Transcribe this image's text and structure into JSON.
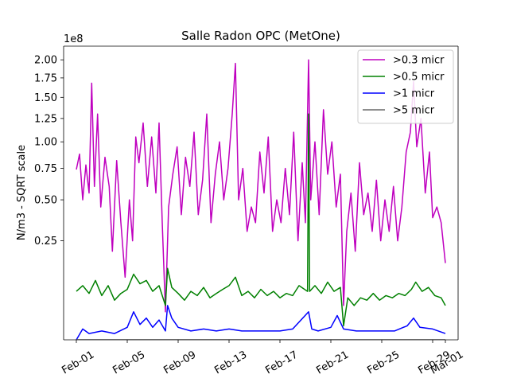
{
  "chart_data": {
    "type": "line",
    "title": "Salle Radon OPC (MetOne)",
    "ylabel": "N/m3 - SQRT scale",
    "xlabel": "",
    "y_scale": "sqrt",
    "y_offset_label": "1e8",
    "ylim": [
      0,
      2.2
    ],
    "xlim": [
      "2024-01-31",
      "2024-03-02"
    ],
    "grid": false,
    "legend_position": "top-right",
    "x_ticks": [
      {
        "date": "2024-02-01",
        "label": "Feb-01"
      },
      {
        "date": "2024-02-05",
        "label": "Feb-05"
      },
      {
        "date": "2024-02-09",
        "label": "Feb-09"
      },
      {
        "date": "2024-02-13",
        "label": "Feb-13"
      },
      {
        "date": "2024-02-17",
        "label": "Feb-17"
      },
      {
        "date": "2024-02-21",
        "label": "Feb-21"
      },
      {
        "date": "2024-02-25",
        "label": "Feb-25"
      },
      {
        "date": "2024-02-29",
        "label": "Feb-29"
      },
      {
        "date": "2024-03-01",
        "label": "Mar-01"
      }
    ],
    "y_ticks": [
      {
        "value": 0.25,
        "label": "0.25"
      },
      {
        "value": 0.5,
        "label": "0.50"
      },
      {
        "value": 0.75,
        "label": "0.75"
      },
      {
        "value": 1.0,
        "label": "1.00"
      },
      {
        "value": 1.25,
        "label": "1.25"
      },
      {
        "value": 1.5,
        "label": "1.50"
      },
      {
        "value": 1.75,
        "label": "1.75"
      },
      {
        "value": 2.0,
        "label": "2.00"
      }
    ],
    "series": [
      {
        "name": ">0.3 micr",
        "color": "#bf00bf",
        "points": [
          [
            "2024-02-01T00:00",
            0.74
          ],
          [
            "2024-02-01T06:00",
            0.88
          ],
          [
            "2024-02-01T12:00",
            0.5
          ],
          [
            "2024-02-01T18:00",
            0.78
          ],
          [
            "2024-02-02T00:00",
            0.55
          ],
          [
            "2024-02-02T05:00",
            1.68
          ],
          [
            "2024-02-02T10:00",
            0.6
          ],
          [
            "2024-02-02T16:00",
            1.3
          ],
          [
            "2024-02-02T22:00",
            0.45
          ],
          [
            "2024-02-03T06:00",
            0.85
          ],
          [
            "2024-02-03T14:00",
            0.6
          ],
          [
            "2024-02-03T20:00",
            0.2
          ],
          [
            "2024-02-04T04:00",
            0.82
          ],
          [
            "2024-02-04T12:00",
            0.35
          ],
          [
            "2024-02-04T20:00",
            0.1
          ],
          [
            "2024-02-05T04:00",
            0.5
          ],
          [
            "2024-02-05T10:00",
            0.25
          ],
          [
            "2024-02-05T16:00",
            1.05
          ],
          [
            "2024-02-05T22:00",
            0.8
          ],
          [
            "2024-02-06T06:00",
            1.2
          ],
          [
            "2024-02-06T14:00",
            0.6
          ],
          [
            "2024-02-06T22:00",
            1.05
          ],
          [
            "2024-02-07T06:00",
            0.55
          ],
          [
            "2024-02-07T12:00",
            1.2
          ],
          [
            "2024-02-07T18:00",
            0.35
          ],
          [
            "2024-02-08T00:00",
            0.02
          ],
          [
            "2024-02-08T06:00",
            0.45
          ],
          [
            "2024-02-08T14:00",
            0.7
          ],
          [
            "2024-02-08T22:00",
            0.95
          ],
          [
            "2024-02-09T06:00",
            0.4
          ],
          [
            "2024-02-09T14:00",
            0.85
          ],
          [
            "2024-02-09T22:00",
            0.6
          ],
          [
            "2024-02-10T06:00",
            1.1
          ],
          [
            "2024-02-10T14:00",
            0.4
          ],
          [
            "2024-02-10T22:00",
            0.65
          ],
          [
            "2024-02-11T06:00",
            1.3
          ],
          [
            "2024-02-11T14:00",
            0.35
          ],
          [
            "2024-02-11T22:00",
            0.7
          ],
          [
            "2024-02-12T06:00",
            1.0
          ],
          [
            "2024-02-12T14:00",
            0.5
          ],
          [
            "2024-02-12T22:00",
            0.75
          ],
          [
            "2024-02-13T06:00",
            1.3
          ],
          [
            "2024-02-13T12:00",
            1.95
          ],
          [
            "2024-02-13T18:00",
            0.5
          ],
          [
            "2024-02-14T02:00",
            0.75
          ],
          [
            "2024-02-14T10:00",
            0.3
          ],
          [
            "2024-02-14T18:00",
            0.45
          ],
          [
            "2024-02-15T02:00",
            0.35
          ],
          [
            "2024-02-15T10:00",
            0.9
          ],
          [
            "2024-02-15T18:00",
            0.55
          ],
          [
            "2024-02-16T02:00",
            1.05
          ],
          [
            "2024-02-16T10:00",
            0.3
          ],
          [
            "2024-02-16T18:00",
            0.5
          ],
          [
            "2024-02-17T02:00",
            0.35
          ],
          [
            "2024-02-17T10:00",
            0.75
          ],
          [
            "2024-02-17T18:00",
            0.4
          ],
          [
            "2024-02-18T02:00",
            1.1
          ],
          [
            "2024-02-18T10:00",
            0.25
          ],
          [
            "2024-02-18T18:00",
            0.8
          ],
          [
            "2024-02-19T00:00",
            0.35
          ],
          [
            "2024-02-19T06:00",
            2.0
          ],
          [
            "2024-02-19T10:00",
            0.5
          ],
          [
            "2024-02-19T18:00",
            1.0
          ],
          [
            "2024-02-20T02:00",
            0.4
          ],
          [
            "2024-02-20T10:00",
            1.35
          ],
          [
            "2024-02-20T18:00",
            0.7
          ],
          [
            "2024-02-21T02:00",
            1.0
          ],
          [
            "2024-02-21T10:00",
            0.45
          ],
          [
            "2024-02-21T18:00",
            0.7
          ],
          [
            "2024-02-22T00:00",
            0.03
          ],
          [
            "2024-02-22T06:00",
            0.3
          ],
          [
            "2024-02-22T14:00",
            0.55
          ],
          [
            "2024-02-22T22:00",
            0.2
          ],
          [
            "2024-02-23T06:00",
            0.8
          ],
          [
            "2024-02-23T14:00",
            0.4
          ],
          [
            "2024-02-23T22:00",
            0.55
          ],
          [
            "2024-02-24T06:00",
            0.3
          ],
          [
            "2024-02-24T14:00",
            0.65
          ],
          [
            "2024-02-24T22:00",
            0.25
          ],
          [
            "2024-02-25T06:00",
            0.5
          ],
          [
            "2024-02-25T14:00",
            0.3
          ],
          [
            "2024-02-25T22:00",
            0.6
          ],
          [
            "2024-02-26T06:00",
            0.25
          ],
          [
            "2024-02-26T14:00",
            0.45
          ],
          [
            "2024-02-26T22:00",
            0.9
          ],
          [
            "2024-02-27T06:00",
            1.1
          ],
          [
            "2024-02-27T12:00",
            1.7
          ],
          [
            "2024-02-27T18:00",
            0.95
          ],
          [
            "2024-02-28T02:00",
            1.25
          ],
          [
            "2024-02-28T10:00",
            0.55
          ],
          [
            "2024-02-28T18:00",
            0.9
          ],
          [
            "2024-02-29T00:00",
            0.38
          ],
          [
            "2024-02-29T08:00",
            0.45
          ],
          [
            "2024-02-29T16:00",
            0.35
          ],
          [
            "2024-03-01T00:00",
            0.15
          ]
        ]
      },
      {
        "name": ">0.5 micr",
        "color": "#008000",
        "points": [
          [
            "2024-02-01T00:00",
            0.06
          ],
          [
            "2024-02-01T12:00",
            0.075
          ],
          [
            "2024-02-02T00:00",
            0.055
          ],
          [
            "2024-02-02T12:00",
            0.09
          ],
          [
            "2024-02-03T00:00",
            0.05
          ],
          [
            "2024-02-03T12:00",
            0.075
          ],
          [
            "2024-02-04T00:00",
            0.04
          ],
          [
            "2024-02-04T12:00",
            0.055
          ],
          [
            "2024-02-05T00:00",
            0.065
          ],
          [
            "2024-02-05T12:00",
            0.11
          ],
          [
            "2024-02-06T00:00",
            0.08
          ],
          [
            "2024-02-06T12:00",
            0.09
          ],
          [
            "2024-02-07T00:00",
            0.06
          ],
          [
            "2024-02-07T12:00",
            0.075
          ],
          [
            "2024-02-08T00:00",
            0.03
          ],
          [
            "2024-02-08T04:00",
            0.13
          ],
          [
            "2024-02-08T12:00",
            0.07
          ],
          [
            "2024-02-09T00:00",
            0.055
          ],
          [
            "2024-02-09T12:00",
            0.04
          ],
          [
            "2024-02-10T00:00",
            0.06
          ],
          [
            "2024-02-10T12:00",
            0.05
          ],
          [
            "2024-02-11T00:00",
            0.07
          ],
          [
            "2024-02-11T12:00",
            0.045
          ],
          [
            "2024-02-12T00:00",
            0.055
          ],
          [
            "2024-02-12T12:00",
            0.065
          ],
          [
            "2024-02-13T00:00",
            0.075
          ],
          [
            "2024-02-13T12:00",
            0.1
          ],
          [
            "2024-02-14T00:00",
            0.05
          ],
          [
            "2024-02-14T12:00",
            0.06
          ],
          [
            "2024-02-15T00:00",
            0.045
          ],
          [
            "2024-02-15T12:00",
            0.065
          ],
          [
            "2024-02-16T00:00",
            0.05
          ],
          [
            "2024-02-16T12:00",
            0.06
          ],
          [
            "2024-02-17T00:00",
            0.045
          ],
          [
            "2024-02-17T12:00",
            0.055
          ],
          [
            "2024-02-18T00:00",
            0.05
          ],
          [
            "2024-02-18T12:00",
            0.075
          ],
          [
            "2024-02-19T04:00",
            0.06
          ],
          [
            "2024-02-19T06:00",
            1.3
          ],
          [
            "2024-02-19T08:00",
            0.06
          ],
          [
            "2024-02-19T18:00",
            0.075
          ],
          [
            "2024-02-20T06:00",
            0.055
          ],
          [
            "2024-02-20T18:00",
            0.085
          ],
          [
            "2024-02-21T06:00",
            0.06
          ],
          [
            "2024-02-21T18:00",
            0.07
          ],
          [
            "2024-02-22T00:00",
            0.005
          ],
          [
            "2024-02-22T08:00",
            0.045
          ],
          [
            "2024-02-22T20:00",
            0.03
          ],
          [
            "2024-02-23T08:00",
            0.045
          ],
          [
            "2024-02-23T20:00",
            0.04
          ],
          [
            "2024-02-24T08:00",
            0.055
          ],
          [
            "2024-02-24T20:00",
            0.04
          ],
          [
            "2024-02-25T08:00",
            0.05
          ],
          [
            "2024-02-25T20:00",
            0.045
          ],
          [
            "2024-02-26T08:00",
            0.055
          ],
          [
            "2024-02-26T20:00",
            0.05
          ],
          [
            "2024-02-27T08:00",
            0.065
          ],
          [
            "2024-02-27T16:00",
            0.085
          ],
          [
            "2024-02-28T04:00",
            0.06
          ],
          [
            "2024-02-28T16:00",
            0.07
          ],
          [
            "2024-02-29T04:00",
            0.05
          ],
          [
            "2024-02-29T16:00",
            0.045
          ],
          [
            "2024-03-01T00:00",
            0.03
          ]
        ]
      },
      {
        "name": ">1 micr",
        "color": "#0000ff",
        "points": [
          [
            "2024-02-01T00:00",
            0.0
          ],
          [
            "2024-02-01T12:00",
            0.003
          ],
          [
            "2024-02-02T00:00",
            0.001
          ],
          [
            "2024-02-03T00:00",
            0.002
          ],
          [
            "2024-02-04T00:00",
            0.001
          ],
          [
            "2024-02-05T00:00",
            0.004
          ],
          [
            "2024-02-05T12:00",
            0.02
          ],
          [
            "2024-02-06T00:00",
            0.006
          ],
          [
            "2024-02-06T12:00",
            0.012
          ],
          [
            "2024-02-07T00:00",
            0.004
          ],
          [
            "2024-02-07T12:00",
            0.01
          ],
          [
            "2024-02-08T00:00",
            0.002
          ],
          [
            "2024-02-08T04:00",
            0.03
          ],
          [
            "2024-02-08T12:00",
            0.012
          ],
          [
            "2024-02-09T00:00",
            0.004
          ],
          [
            "2024-02-10T00:00",
            0.002
          ],
          [
            "2024-02-11T00:00",
            0.003
          ],
          [
            "2024-02-12T00:00",
            0.002
          ],
          [
            "2024-02-13T00:00",
            0.003
          ],
          [
            "2024-02-14T00:00",
            0.002
          ],
          [
            "2024-02-15T00:00",
            0.002
          ],
          [
            "2024-02-16T00:00",
            0.002
          ],
          [
            "2024-02-17T00:00",
            0.002
          ],
          [
            "2024-02-18T00:00",
            0.003
          ],
          [
            "2024-02-19T06:00",
            0.02
          ],
          [
            "2024-02-19T12:00",
            0.003
          ],
          [
            "2024-02-20T00:00",
            0.002
          ],
          [
            "2024-02-21T00:00",
            0.004
          ],
          [
            "2024-02-21T12:00",
            0.015
          ],
          [
            "2024-02-22T00:00",
            0.003
          ],
          [
            "2024-02-23T00:00",
            0.002
          ],
          [
            "2024-02-24T00:00",
            0.002
          ],
          [
            "2024-02-25T00:00",
            0.002
          ],
          [
            "2024-02-26T00:00",
            0.002
          ],
          [
            "2024-02-27T00:00",
            0.005
          ],
          [
            "2024-02-27T12:00",
            0.012
          ],
          [
            "2024-02-28T00:00",
            0.004
          ],
          [
            "2024-02-29T00:00",
            0.003
          ],
          [
            "2024-03-01T00:00",
            0.001
          ]
        ]
      },
      {
        "name": ">5 micr",
        "color": "#696969",
        "points": [
          [
            "2024-02-01T00:00",
            0.0
          ],
          [
            "2024-02-15T00:00",
            0.0
          ],
          [
            "2024-03-01T00:00",
            0.0
          ]
        ]
      }
    ]
  }
}
